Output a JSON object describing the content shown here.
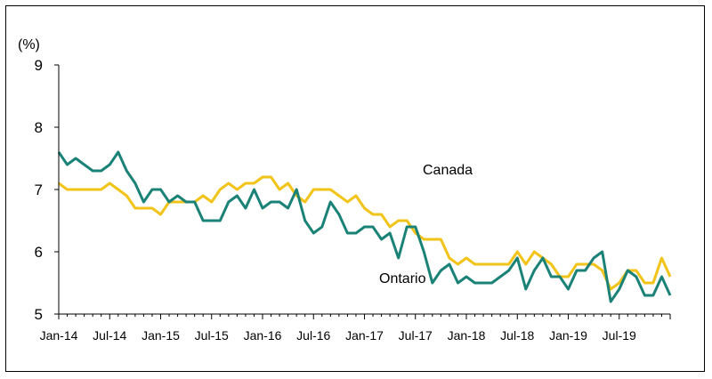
{
  "chart_data": {
    "type": "line",
    "ylabel": "(%)",
    "ylim": [
      5,
      9
    ],
    "yticks": [
      5,
      6,
      7,
      8,
      9
    ],
    "x_tick_labels": [
      "Jan-14",
      "Jul-14",
      "Jan-15",
      "Jul-15",
      "Jan-16",
      "Jul-16",
      "Jan-17",
      "Jul-17",
      "Jan-18",
      "Jul-18",
      "Jan-19",
      "Jul-19"
    ],
    "x_range": [
      "Jan-14",
      "Dec-19"
    ],
    "grid": false,
    "legend": "inline labels",
    "series": [
      {
        "name": "Canada",
        "color": "#f2c318",
        "values": [
          7.1,
          7.0,
          7.0,
          7.0,
          7.0,
          7.0,
          7.1,
          7.0,
          6.9,
          6.7,
          6.7,
          6.7,
          6.6,
          6.8,
          6.8,
          6.8,
          6.8,
          6.9,
          6.8,
          7.0,
          7.1,
          7.0,
          7.1,
          7.1,
          7.2,
          7.2,
          7.0,
          7.1,
          6.9,
          6.8,
          7.0,
          7.0,
          7.0,
          6.9,
          6.8,
          6.9,
          6.7,
          6.6,
          6.6,
          6.4,
          6.5,
          6.5,
          6.3,
          6.2,
          6.2,
          6.2,
          5.9,
          5.8,
          5.9,
          5.8,
          5.8,
          5.8,
          5.8,
          5.8,
          6.0,
          5.8,
          6.0,
          5.9,
          5.8,
          5.6,
          5.6,
          5.8,
          5.8,
          5.8,
          5.7,
          5.4,
          5.5,
          5.7,
          5.7,
          5.5,
          5.5,
          5.9,
          5.6
        ]
      },
      {
        "name": "Ontario",
        "color": "#1b8277",
        "values": [
          7.6,
          7.4,
          7.5,
          7.4,
          7.3,
          7.3,
          7.4,
          7.6,
          7.3,
          7.1,
          6.8,
          7.0,
          7.0,
          6.8,
          6.9,
          6.8,
          6.8,
          6.5,
          6.5,
          6.5,
          6.8,
          6.9,
          6.7,
          7.0,
          6.7,
          6.8,
          6.8,
          6.7,
          7.0,
          6.5,
          6.3,
          6.4,
          6.8,
          6.6,
          6.3,
          6.3,
          6.4,
          6.4,
          6.2,
          6.3,
          5.9,
          6.4,
          6.4,
          6.0,
          5.5,
          5.7,
          5.8,
          5.5,
          5.6,
          5.5,
          5.5,
          5.5,
          5.6,
          5.7,
          5.9,
          5.4,
          5.7,
          5.9,
          5.6,
          5.6,
          5.4,
          5.7,
          5.7,
          5.9,
          6.0,
          5.2,
          5.4,
          5.7,
          5.6,
          5.3,
          5.3,
          5.6,
          5.3
        ]
      }
    ]
  }
}
